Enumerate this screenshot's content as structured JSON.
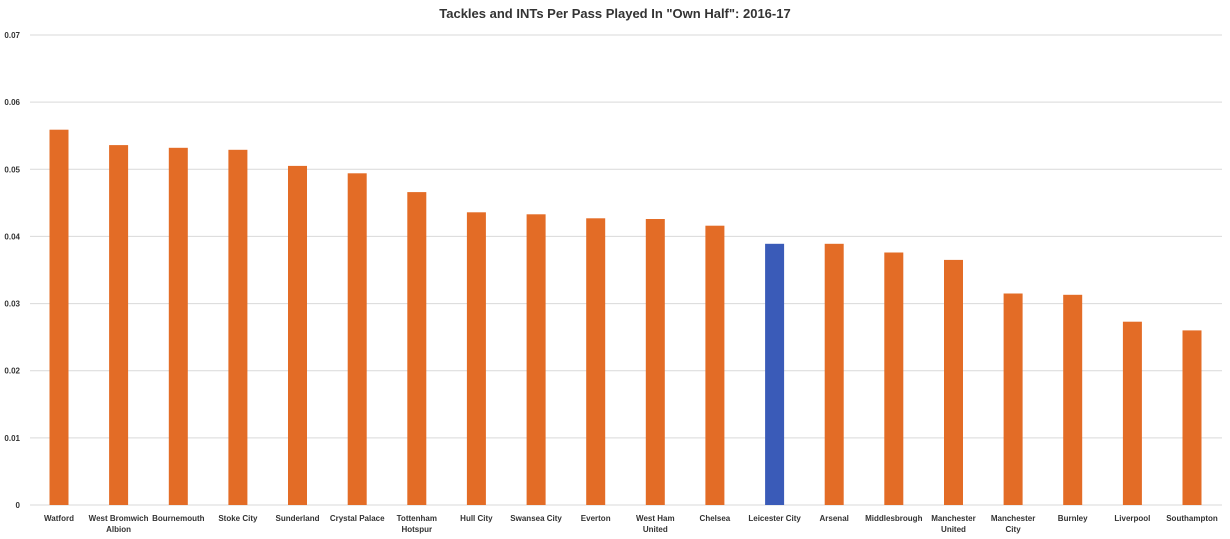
{
  "chart_data": {
    "type": "bar",
    "title": "Tackles and INTs Per Pass Played In \"Own Half\": 2016-17",
    "xlabel": "",
    "ylabel": "",
    "ylim": [
      0,
      0.07
    ],
    "yticks": [
      "0",
      "0.01",
      "0.02",
      "0.03",
      "0.04",
      "0.05",
      "0.06",
      "0.07"
    ],
    "grid": true,
    "categories": [
      [
        "Watford"
      ],
      [
        "West Bromwich",
        "Albion"
      ],
      [
        "Bournemouth"
      ],
      [
        "Stoke City"
      ],
      [
        "Sunderland"
      ],
      [
        "Crystal Palace"
      ],
      [
        "Tottenham",
        "Hotspur"
      ],
      [
        "Hull City"
      ],
      [
        "Swansea City"
      ],
      [
        "Everton"
      ],
      [
        "West Ham",
        "United"
      ],
      [
        "Chelsea"
      ],
      [
        "Leicester City"
      ],
      [
        "Arsenal"
      ],
      [
        "Middlesbrough"
      ],
      [
        "Manchester",
        "United"
      ],
      [
        "Manchester",
        "City"
      ],
      [
        "Burnley"
      ],
      [
        "Liverpool"
      ],
      [
        "Southampton"
      ]
    ],
    "values": [
      0.0559,
      0.0536,
      0.0532,
      0.0529,
      0.0505,
      0.0494,
      0.0466,
      0.0436,
      0.0433,
      0.0427,
      0.0426,
      0.0416,
      0.0389,
      0.0389,
      0.0376,
      0.0365,
      0.0315,
      0.0313,
      0.0273,
      0.026
    ],
    "colors": {
      "default": "#E36C26",
      "highlight": "#3A5BB8"
    },
    "highlight_category": "Leicester City"
  }
}
